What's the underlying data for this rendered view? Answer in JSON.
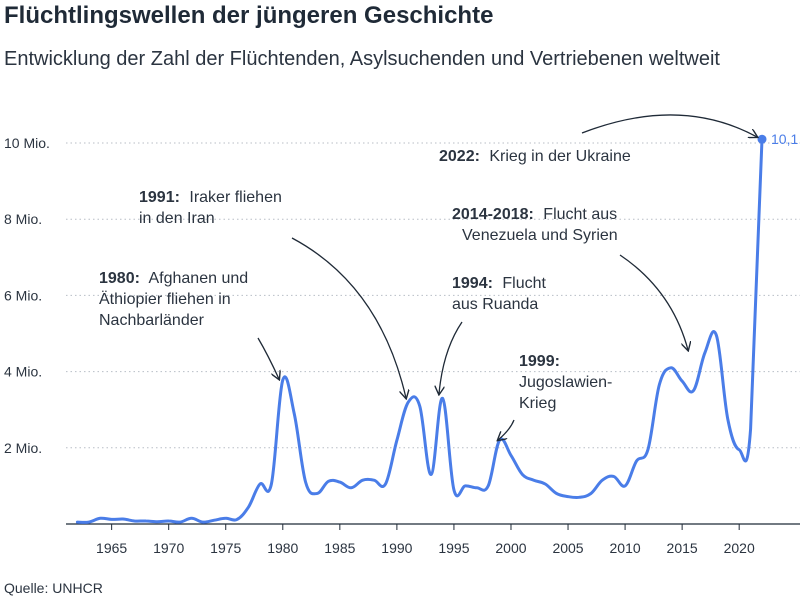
{
  "title": "Flüchtlingswellen der jüngeren Geschichte",
  "subtitle": "Entwicklung der Zahl der Flüchtenden, Asylsuchenden und Vertriebenen weltweit",
  "source": "Quelle: UNHCR",
  "chart_data": {
    "type": "line",
    "color": "#4a7de8",
    "grid": "horizontal dotted",
    "ylim": [
      0,
      10
    ],
    "xlim": [
      1961,
      2022
    ],
    "yticks": [
      {
        "value": 2,
        "label": "2 Mio."
      },
      {
        "value": 4,
        "label": "4 Mio."
      },
      {
        "value": 6,
        "label": "6 Mio."
      },
      {
        "value": 8,
        "label": "8 Mio."
      },
      {
        "value": 10,
        "label": "10 Mio."
      }
    ],
    "xticks": [
      "1965",
      "1970",
      "1975",
      "1980",
      "1985",
      "1990",
      "1995",
      "2000",
      "2005",
      "2010",
      "2015",
      "2020"
    ],
    "x": [
      1962,
      1963,
      1964,
      1965,
      1966,
      1967,
      1968,
      1969,
      1970,
      1971,
      1972,
      1973,
      1974,
      1975,
      1976,
      1977,
      1978,
      1979,
      1980,
      1981,
      1982,
      1983,
      1984,
      1985,
      1986,
      1987,
      1988,
      1989,
      1990,
      1991,
      1992,
      1993,
      1994,
      1995,
      1996,
      1997,
      1998,
      1999,
      2000,
      2001,
      2002,
      2003,
      2004,
      2005,
      2006,
      2007,
      2008,
      2009,
      2010,
      2011,
      2012,
      2013,
      2014,
      2015,
      2016,
      2017,
      2018,
      2019,
      2020,
      2021,
      2022
    ],
    "values": [
      0.05,
      0.05,
      0.15,
      0.12,
      0.13,
      0.08,
      0.08,
      0.06,
      0.08,
      0.05,
      0.15,
      0.05,
      0.1,
      0.15,
      0.12,
      0.45,
      1.05,
      1.05,
      3.78,
      2.9,
      1.1,
      0.8,
      1.12,
      1.1,
      0.95,
      1.15,
      1.15,
      1.05,
      2.2,
      3.2,
      3.1,
      1.3,
      3.3,
      0.9,
      1.0,
      0.95,
      1.0,
      2.2,
      1.8,
      1.3,
      1.15,
      1.05,
      0.8,
      0.72,
      0.7,
      0.8,
      1.15,
      1.25,
      1.0,
      1.65,
      1.95,
      3.65,
      4.1,
      3.75,
      3.5,
      4.5,
      4.95,
      2.75,
      1.95,
      2.5,
      10.1
    ],
    "end_label": "10,1",
    "annotations": [
      {
        "bold": "1980:",
        "text": "Afghanen und Äthiopier fliehen in Nachbarländer",
        "lines": [
          "Afghanen und",
          "Äthiopier fliehen in",
          "Nachbarländer"
        ]
      },
      {
        "bold": "1991:",
        "text": "Iraker fliehen in den Iran",
        "lines": [
          "Iraker fliehen",
          "in den Iran"
        ]
      },
      {
        "bold": "1994:",
        "text": "Flucht aus Ruanda",
        "lines": [
          "Flucht",
          "aus Ruanda"
        ]
      },
      {
        "bold": "1999:",
        "text": "Jugoslawien-Krieg",
        "lines": [
          "",
          "Jugoslawien-",
          "Krieg"
        ]
      },
      {
        "bold": "2014-2018:",
        "text": "Flucht aus Venezuela und Syrien",
        "lines": [
          "Flucht aus",
          "Venezuela und Syrien"
        ]
      },
      {
        "bold": "2022:",
        "text": "Krieg in der Ukraine",
        "lines": [
          "Krieg in der Ukraine"
        ]
      }
    ]
  }
}
